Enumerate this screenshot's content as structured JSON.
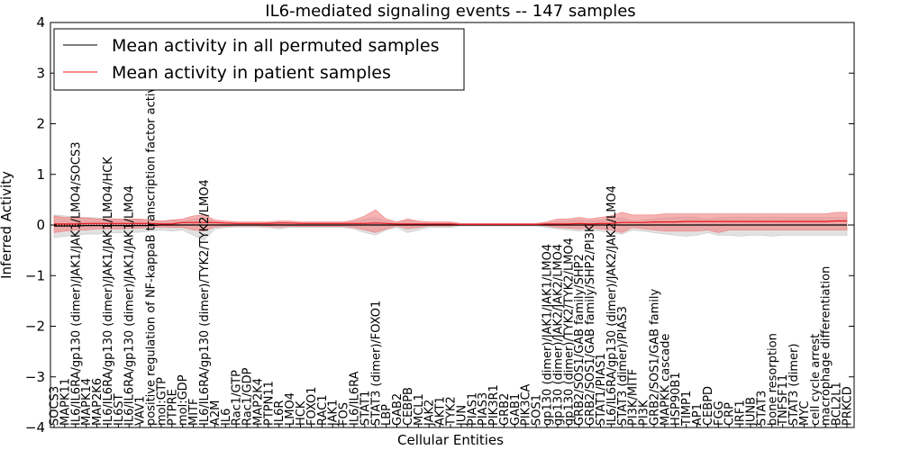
{
  "chart_data": {
    "type": "line",
    "title": "IL6-mediated signaling events -- 147 samples",
    "xlabel": "Cellular Entities",
    "ylabel": "Inferred Activity",
    "ylim": [
      -4,
      4
    ],
    "yticks": [
      "4",
      "3",
      "2",
      "1",
      "0",
      "−1",
      "−2",
      "−3",
      "−4"
    ],
    "ytick_values": [
      4,
      3,
      2,
      1,
      0,
      -1,
      -2,
      -3,
      -4
    ],
    "grid": false,
    "legend_position": "top-left",
    "categories": [
      "SOCS3",
      "MAPK11",
      "IL6/IL6RA/gp130 (dimer)/JAK1/JAK1/LMO4/SOCS3",
      "MAPK14",
      "MAP2K6",
      "IL6/IL6RA/gp130 (dimer)/JAK1/JAK1/LMO4/HCK",
      "IL6ST",
      "IL6/IL6RA/gp130 (dimer)/JAK1/JAK1/LMO4",
      "VAV1",
      "positive regulation of NF-kappaB transcription factor activity",
      "mol:GTP",
      "PTPRE",
      "mol:GDP",
      "MITF",
      "IL6/IL6RA/gp130 (dimer)/TYK2/TYK2/LMO4",
      "A2M",
      "IL6",
      "Rac1/GTP",
      "Rac1/GDP",
      "MAP2K4",
      "PTPN11",
      "IL6R",
      "LMO4",
      "HCK",
      "FOXO1",
      "RAC1",
      "JAK1",
      "FOS",
      "IL6/IL6RA",
      "STAT1",
      "STAT3 (dimer)/FOXO1",
      "LBP",
      "GAB2",
      "CEBPB",
      "MCL1",
      "JAK2",
      "AKT1",
      "TYK2",
      "JUN",
      "PIAS1",
      "PIAS3",
      "PIK3R1",
      "GRB2",
      "GAB1",
      "PIK3CA",
      "SOS1",
      "gp130 (dimer)/JAK1/JAK1/LMO4",
      "gp130 (dimer)/JAK2/JAK2/LMO4",
      "gp130 (dimer)/TYK2/TYK2/LMO4",
      "GRB2/SOS1/GAB family/SHP2",
      "GRB2/SOS1/GAB family/SHP2/PI3K",
      "STAT1/PIAS1",
      "IL6/IL6RA/gp130 (dimer)/JAK2/JAK2/LMO4",
      "STAT3 (dimer)/PIAS3",
      "PI3K/MITF",
      "PI3K",
      "GRB2/SOS1/GAB family",
      "MAPKK cascade",
      "HSP90B1",
      "TIMP1",
      "AP1",
      "CEBPD",
      "FGG",
      "CRP",
      "IRF1",
      "JUNB",
      "STAT3",
      "bone resorption",
      "TNFSF11",
      "STAT3 (dimer)",
      "MYC",
      "cell cycle arrest",
      "macrophage differentiation",
      "BCL2L1",
      "PRKCD"
    ],
    "series": [
      {
        "name": "Mean activity in all permuted samples",
        "color": "#000000",
        "band_color": "#c8c8c8",
        "values": [
          -0.02,
          -0.02,
          -0.02,
          -0.01,
          -0.01,
          -0.01,
          -0.01,
          -0.01,
          -0.01,
          -0.01,
          0,
          0,
          0,
          0,
          0,
          0,
          0,
          0,
          0,
          0,
          0,
          0,
          0,
          0,
          0,
          0,
          0,
          0,
          0,
          0,
          0,
          0,
          0,
          0,
          0,
          0,
          0,
          0,
          0,
          0,
          0,
          0,
          0,
          0,
          0,
          0,
          0,
          0,
          0,
          0,
          0,
          0,
          0,
          0,
          0,
          0,
          0,
          0,
          0,
          0,
          0,
          0,
          0,
          0,
          0,
          0,
          0,
          0,
          0,
          0,
          0,
          0,
          0,
          0,
          0
        ],
        "lower": [
          -0.25,
          -0.22,
          -0.2,
          -0.18,
          -0.18,
          -0.16,
          -0.15,
          -0.15,
          -0.14,
          -0.12,
          -0.1,
          -0.12,
          -0.1,
          -0.2,
          -0.3,
          -0.08,
          -0.05,
          -0.04,
          -0.04,
          -0.04,
          -0.05,
          -0.08,
          -0.05,
          -0.05,
          -0.05,
          -0.05,
          -0.05,
          -0.05,
          -0.08,
          -0.15,
          -0.2,
          -0.1,
          -0.05,
          -0.15,
          -0.1,
          -0.05,
          -0.05,
          -0.05,
          -0.02,
          -0.02,
          -0.02,
          -0.02,
          -0.02,
          -0.02,
          -0.02,
          -0.02,
          -0.05,
          -0.08,
          -0.1,
          -0.12,
          -0.1,
          -0.12,
          -0.15,
          -0.18,
          -0.1,
          -0.12,
          -0.15,
          -0.18,
          -0.2,
          -0.22,
          -0.2,
          -0.15,
          -0.2,
          -0.2,
          -0.22,
          -0.2,
          -0.2,
          -0.22,
          -0.2,
          -0.2,
          -0.2,
          -0.2,
          -0.2,
          -0.2,
          -0.2
        ],
        "upper": [
          0.2,
          0.18,
          0.16,
          0.15,
          0.14,
          0.13,
          0.12,
          0.12,
          0.12,
          0.1,
          0.08,
          0.1,
          0.08,
          0.12,
          0.15,
          0.06,
          0.04,
          0.03,
          0.03,
          0.03,
          0.04,
          0.06,
          0.04,
          0.04,
          0.04,
          0.04,
          0.04,
          0.04,
          0.06,
          0.12,
          0.15,
          0.08,
          0.04,
          0.1,
          0.06,
          0.04,
          0.04,
          0.04,
          0.02,
          0.02,
          0.02,
          0.02,
          0.02,
          0.02,
          0.02,
          0.02,
          0.04,
          0.06,
          0.08,
          0.1,
          0.08,
          0.1,
          0.12,
          0.14,
          0.08,
          0.1,
          0.12,
          0.14,
          0.15,
          0.16,
          0.15,
          0.12,
          0.15,
          0.15,
          0.16,
          0.15,
          0.15,
          0.16,
          0.15,
          0.15,
          0.15,
          0.15,
          0.15,
          0.15,
          0.15
        ]
      },
      {
        "name": "Mean activity in patient samples",
        "color": "#e8141c",
        "band_color": "#f08080",
        "values": [
          0.02,
          0.02,
          0.02,
          0.03,
          0.03,
          0.03,
          0.03,
          0.03,
          0.03,
          0.03,
          0.02,
          0.02,
          0.05,
          0.05,
          0.05,
          0.05,
          0.04,
          0.03,
          0.03,
          0.03,
          0.03,
          0.04,
          0.04,
          0.03,
          0.03,
          0.03,
          0.03,
          0.03,
          0.03,
          0.03,
          0.04,
          0.03,
          0.02,
          0.02,
          0.02,
          0.02,
          0.02,
          0.02,
          0.01,
          0.01,
          0.01,
          0.01,
          0.01,
          0.01,
          0.01,
          0.01,
          0.02,
          0.02,
          0.02,
          0.03,
          0.02,
          0.03,
          0.03,
          0.05,
          0.05,
          0.05,
          0.06,
          0.06,
          0.06,
          0.07,
          0.07,
          0.07,
          0.07,
          0.07,
          0.07,
          0.07,
          0.07,
          0.07,
          0.07,
          0.07,
          0.07,
          0.07,
          0.07,
          0.08,
          0.08
        ],
        "lower": [
          -0.15,
          -0.12,
          -0.1,
          -0.1,
          -0.08,
          -0.08,
          -0.08,
          -0.07,
          -0.06,
          -0.05,
          -0.04,
          -0.05,
          -0.05,
          -0.1,
          -0.12,
          -0.04,
          -0.03,
          -0.02,
          -0.02,
          -0.02,
          -0.03,
          -0.04,
          -0.03,
          -0.03,
          -0.03,
          -0.03,
          -0.03,
          -0.03,
          -0.05,
          -0.1,
          -0.15,
          -0.08,
          -0.02,
          -0.08,
          -0.05,
          -0.02,
          -0.02,
          -0.02,
          0,
          0,
          0,
          0,
          0,
          0,
          0,
          0,
          -0.02,
          -0.05,
          -0.06,
          -0.08,
          -0.06,
          -0.08,
          -0.1,
          -0.15,
          -0.05,
          -0.08,
          -0.1,
          -0.12,
          -0.12,
          -0.12,
          -0.12,
          -0.1,
          -0.15,
          -0.1,
          -0.1,
          -0.1,
          -0.1,
          -0.1,
          -0.1,
          -0.1,
          -0.1,
          -0.1,
          -0.1,
          -0.1,
          -0.1
        ],
        "upper": [
          0.18,
          0.15,
          0.14,
          0.14,
          0.12,
          0.12,
          0.12,
          0.12,
          0.12,
          0.1,
          0.08,
          0.1,
          0.12,
          0.18,
          0.2,
          0.1,
          0.08,
          0.06,
          0.06,
          0.06,
          0.06,
          0.08,
          0.08,
          0.06,
          0.06,
          0.06,
          0.06,
          0.06,
          0.1,
          0.18,
          0.3,
          0.12,
          0.06,
          0.12,
          0.08,
          0.06,
          0.06,
          0.06,
          0.03,
          0.03,
          0.03,
          0.03,
          0.03,
          0.03,
          0.03,
          0.03,
          0.06,
          0.12,
          0.12,
          0.15,
          0.12,
          0.15,
          0.18,
          0.25,
          0.2,
          0.2,
          0.2,
          0.22,
          0.22,
          0.22,
          0.22,
          0.22,
          0.22,
          0.22,
          0.22,
          0.22,
          0.22,
          0.22,
          0.22,
          0.22,
          0.22,
          0.22,
          0.22,
          0.25,
          0.25
        ]
      }
    ]
  }
}
